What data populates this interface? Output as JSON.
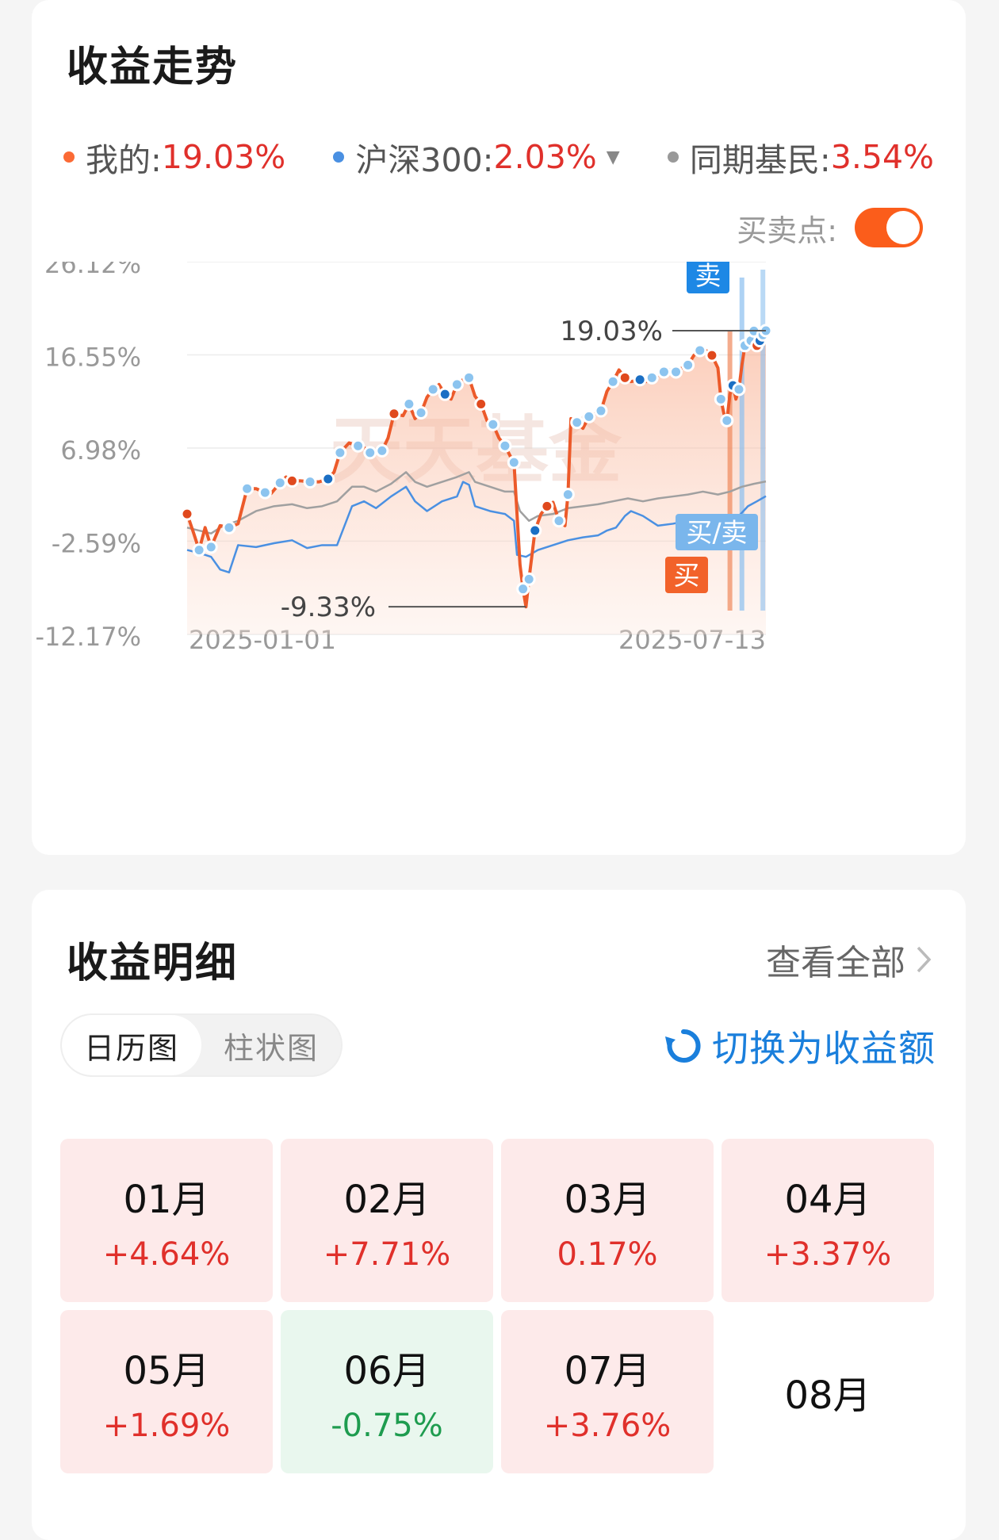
{
  "trend": {
    "title": "收益走势",
    "legend": [
      {
        "label": "我的:",
        "value": "19.03%",
        "color": "#fb6a35"
      },
      {
        "label": "沪深300:",
        "value": "2.03%",
        "color": "#4a90e2"
      },
      {
        "label": "同期基民:",
        "value": "3.54%",
        "color": "#999999"
      }
    ],
    "buy_sell_label": "买卖点:",
    "buy_sell_enabled": true
  },
  "chart_data": {
    "type": "line",
    "y_ticks": [
      "26.12%",
      "16.55%",
      "6.98%",
      "-2.59%",
      "-12.17%"
    ],
    "ylim": [
      -12.17,
      26.12
    ],
    "x_tick_labels": [
      "2025-01-01",
      "2025-07-13"
    ],
    "x_range": [
      "2025-01-01",
      "2025-07-13"
    ],
    "watermark": "天天基金",
    "annotations": {
      "max_label": "19.03%",
      "min_label": "-9.33%"
    },
    "markers": {
      "sell": "卖",
      "buy": "买",
      "buy_sell": "买/卖"
    },
    "series": [
      {
        "name": "我的",
        "color": "#ec5a2a",
        "points": [
          [
            "2025-01-01",
            0.2
          ],
          [
            "2025-01-03",
            -1.6
          ],
          [
            "2025-01-05",
            -3.5
          ],
          [
            "2025-01-07",
            -1.2
          ],
          [
            "2025-01-09",
            -3.2
          ],
          [
            "2025-01-12",
            -1.0
          ],
          [
            "2025-01-15",
            -1.2
          ],
          [
            "2025-01-18",
            -0.8
          ],
          [
            "2025-01-21",
            2.8
          ],
          [
            "2025-01-24",
            2.8
          ],
          [
            "2025-01-27",
            2.4
          ],
          [
            "2025-01-29",
            2.3
          ],
          [
            "2025-02-01",
            3.4
          ],
          [
            "2025-02-03",
            4.0
          ],
          [
            "2025-02-05",
            3.6
          ],
          [
            "2025-02-08",
            3.6
          ],
          [
            "2025-02-11",
            3.5
          ],
          [
            "2025-02-14",
            3.5
          ],
          [
            "2025-02-17",
            3.8
          ],
          [
            "2025-02-19",
            4.5
          ],
          [
            "2025-02-21",
            6.5
          ],
          [
            "2025-02-24",
            7.5
          ],
          [
            "2025-02-27",
            7.2
          ],
          [
            "2025-03-01",
            7.0
          ],
          [
            "2025-03-03",
            6.5
          ],
          [
            "2025-03-05",
            6.6
          ],
          [
            "2025-03-07",
            6.7
          ],
          [
            "2025-03-09",
            8.0
          ],
          [
            "2025-03-11",
            10.5
          ],
          [
            "2025-03-14",
            10.3
          ],
          [
            "2025-03-16",
            11.5
          ],
          [
            "2025-03-18",
            10.0
          ],
          [
            "2025-03-20",
            10.6
          ],
          [
            "2025-03-22",
            12.2
          ],
          [
            "2025-03-24",
            13.0
          ],
          [
            "2025-03-26",
            13.5
          ],
          [
            "2025-03-28",
            12.5
          ],
          [
            "2025-03-30",
            12.0
          ],
          [
            "2025-04-01",
            13.5
          ],
          [
            "2025-04-03",
            14.0
          ],
          [
            "2025-04-05",
            14.2
          ],
          [
            "2025-04-07",
            12.3
          ],
          [
            "2025-04-09",
            11.5
          ],
          [
            "2025-04-11",
            9.8
          ],
          [
            "2025-04-13",
            9.4
          ],
          [
            "2025-04-15",
            8.0
          ],
          [
            "2025-04-17",
            7.2
          ],
          [
            "2025-04-19",
            6.0
          ],
          [
            "2025-04-20",
            5.5
          ],
          [
            "2025-04-22",
            -5.0
          ],
          [
            "2025-04-23",
            -7.5
          ],
          [
            "2025-04-24",
            -9.33
          ],
          [
            "2025-04-25",
            -6.5
          ],
          [
            "2025-04-26",
            -4.0
          ],
          [
            "2025-04-27",
            -1.5
          ],
          [
            "2025-04-29",
            0.2
          ],
          [
            "2025-05-01",
            1.0
          ],
          [
            "2025-05-03",
            1.4
          ],
          [
            "2025-05-05",
            -0.5
          ],
          [
            "2025-05-07",
            -1.0
          ],
          [
            "2025-05-08",
            2.2
          ],
          [
            "2025-05-09",
            10.0
          ],
          [
            "2025-05-11",
            9.6
          ],
          [
            "2025-05-13",
            9.0
          ],
          [
            "2025-05-15",
            10.2
          ],
          [
            "2025-05-17",
            10.5
          ],
          [
            "2025-05-19",
            10.8
          ],
          [
            "2025-05-21",
            12.8
          ],
          [
            "2025-05-23",
            13.8
          ],
          [
            "2025-05-25",
            15.0
          ],
          [
            "2025-05-27",
            14.2
          ],
          [
            "2025-05-29",
            13.8
          ],
          [
            "2025-06-01",
            14.0
          ],
          [
            "2025-06-03",
            13.8
          ],
          [
            "2025-06-05",
            14.2
          ],
          [
            "2025-06-07",
            14.4
          ],
          [
            "2025-06-09",
            14.8
          ],
          [
            "2025-06-11",
            15.0
          ],
          [
            "2025-06-13",
            14.8
          ],
          [
            "2025-06-15",
            15.2
          ],
          [
            "2025-06-17",
            15.5
          ],
          [
            "2025-06-19",
            16.5
          ],
          [
            "2025-06-21",
            17.0
          ],
          [
            "2025-06-23",
            17.0
          ],
          [
            "2025-06-25",
            16.5
          ],
          [
            "2025-06-27",
            15.2
          ],
          [
            "2025-06-28",
            12.0
          ],
          [
            "2025-06-29",
            10.5
          ],
          [
            "2025-06-30",
            9.8
          ],
          [
            "2025-07-01",
            12.5
          ],
          [
            "2025-07-02",
            13.4
          ],
          [
            "2025-07-03",
            12.0
          ],
          [
            "2025-07-04",
            13.0
          ],
          [
            "2025-07-05",
            15.5
          ],
          [
            "2025-07-06",
            17.5
          ],
          [
            "2025-07-07",
            18.4
          ],
          [
            "2025-07-08",
            18.0
          ],
          [
            "2025-07-09",
            19.0
          ],
          [
            "2025-07-10",
            17.5
          ],
          [
            "2025-07-11",
            18.0
          ],
          [
            "2025-07-12",
            18.6
          ],
          [
            "2025-07-13",
            19.03
          ]
        ]
      },
      {
        "name": "沪深300",
        "color": "#4a90e2",
        "points": [
          [
            "2025-01-01",
            -3.5
          ],
          [
            "2025-01-05",
            -3.8
          ],
          [
            "2025-01-09",
            -4.2
          ],
          [
            "2025-01-12",
            -5.5
          ],
          [
            "2025-01-15",
            -5.8
          ],
          [
            "2025-01-18",
            -3.0
          ],
          [
            "2025-01-24",
            -3.2
          ],
          [
            "2025-01-30",
            -2.8
          ],
          [
            "2025-02-05",
            -2.5
          ],
          [
            "2025-02-10",
            -3.3
          ],
          [
            "2025-02-15",
            -3.0
          ],
          [
            "2025-02-20",
            -3.0
          ],
          [
            "2025-02-25",
            1.0
          ],
          [
            "2025-03-01",
            1.5
          ],
          [
            "2025-03-05",
            0.8
          ],
          [
            "2025-03-10",
            2.0
          ],
          [
            "2025-03-15",
            3.0
          ],
          [
            "2025-03-18",
            1.5
          ],
          [
            "2025-03-22",
            0.5
          ],
          [
            "2025-03-27",
            1.5
          ],
          [
            "2025-04-01",
            2.0
          ],
          [
            "2025-04-03",
            3.5
          ],
          [
            "2025-04-05",
            3.2
          ],
          [
            "2025-04-07",
            1.0
          ],
          [
            "2025-04-12",
            0.5
          ],
          [
            "2025-04-17",
            0.2
          ],
          [
            "2025-04-20",
            -0.5
          ],
          [
            "2025-04-21",
            -4.0
          ],
          [
            "2025-04-24",
            -4.2
          ],
          [
            "2025-04-28",
            -3.5
          ],
          [
            "2025-05-03",
            -3.0
          ],
          [
            "2025-05-08",
            -2.5
          ],
          [
            "2025-05-13",
            -2.2
          ],
          [
            "2025-05-18",
            -2.0
          ],
          [
            "2025-05-21",
            -1.5
          ],
          [
            "2025-05-24",
            -1.2
          ],
          [
            "2025-05-27",
            0.0
          ],
          [
            "2025-05-29",
            0.5
          ],
          [
            "2025-06-02",
            0.0
          ],
          [
            "2025-06-07",
            -1.0
          ],
          [
            "2025-06-12",
            -0.8
          ],
          [
            "2025-06-17",
            -0.5
          ],
          [
            "2025-06-22",
            -0.8
          ],
          [
            "2025-06-27",
            -1.0
          ],
          [
            "2025-07-01",
            -0.5
          ],
          [
            "2025-07-04",
            0.0
          ],
          [
            "2025-07-07",
            1.0
          ],
          [
            "2025-07-10",
            1.5
          ],
          [
            "2025-07-13",
            2.03
          ]
        ]
      },
      {
        "name": "同期基民",
        "color": "#a0a0a0",
        "points": [
          [
            "2025-01-01",
            -1.2
          ],
          [
            "2025-01-05",
            -1.5
          ],
          [
            "2025-01-09",
            -1.8
          ],
          [
            "2025-01-13",
            -1.0
          ],
          [
            "2025-01-18",
            -0.5
          ],
          [
            "2025-01-24",
            0.5
          ],
          [
            "2025-01-30",
            1.0
          ],
          [
            "2025-02-05",
            1.2
          ],
          [
            "2025-02-10",
            0.8
          ],
          [
            "2025-02-15",
            1.0
          ],
          [
            "2025-02-20",
            1.5
          ],
          [
            "2025-02-25",
            3.0
          ],
          [
            "2025-03-01",
            3.0
          ],
          [
            "2025-03-05",
            2.5
          ],
          [
            "2025-03-10",
            3.3
          ],
          [
            "2025-03-15",
            4.5
          ],
          [
            "2025-03-18",
            3.5
          ],
          [
            "2025-03-22",
            3.0
          ],
          [
            "2025-03-27",
            3.5
          ],
          [
            "2025-04-01",
            4.0
          ],
          [
            "2025-04-05",
            4.5
          ],
          [
            "2025-04-07",
            3.5
          ],
          [
            "2025-04-12",
            3.0
          ],
          [
            "2025-04-17",
            2.5
          ],
          [
            "2025-04-20",
            2.5
          ],
          [
            "2025-04-22",
            0.5
          ],
          [
            "2025-04-25",
            -0.5
          ],
          [
            "2025-04-28",
            0.0
          ],
          [
            "2025-05-03",
            0.2
          ],
          [
            "2025-05-08",
            0.8
          ],
          [
            "2025-05-13",
            1.0
          ],
          [
            "2025-05-18",
            1.2
          ],
          [
            "2025-05-23",
            1.5
          ],
          [
            "2025-05-28",
            1.8
          ],
          [
            "2025-06-02",
            1.5
          ],
          [
            "2025-06-07",
            1.8
          ],
          [
            "2025-06-12",
            2.0
          ],
          [
            "2025-06-17",
            2.2
          ],
          [
            "2025-06-22",
            2.5
          ],
          [
            "2025-06-27",
            2.2
          ],
          [
            "2025-07-01",
            2.5
          ],
          [
            "2025-07-05",
            3.0
          ],
          [
            "2025-07-09",
            3.3
          ],
          [
            "2025-07-13",
            3.54
          ]
        ]
      }
    ]
  },
  "detail": {
    "title": "收益明细",
    "view_all": "查看全部",
    "tabs": [
      "日历图",
      "柱状图"
    ],
    "switch_label": "切换为收益额",
    "months": [
      {
        "month": "01月",
        "value": "+4.64%",
        "status": "up"
      },
      {
        "month": "02月",
        "value": "+7.71%",
        "status": "up"
      },
      {
        "month": "03月",
        "value": "0.17%",
        "status": "up"
      },
      {
        "month": "04月",
        "value": "+3.37%",
        "status": "up"
      },
      {
        "month": "05月",
        "value": "+1.69%",
        "status": "up"
      },
      {
        "month": "06月",
        "value": "-0.75%",
        "status": "down"
      },
      {
        "month": "07月",
        "value": "+3.76%",
        "status": "up"
      },
      {
        "month": "08月",
        "value": "",
        "status": "none"
      }
    ],
    "colors": {
      "up_bg": "#fdeaea",
      "up_text": "#e0302b",
      "down_bg": "#e9f7ee",
      "down_text": "#1e9c4f"
    }
  }
}
